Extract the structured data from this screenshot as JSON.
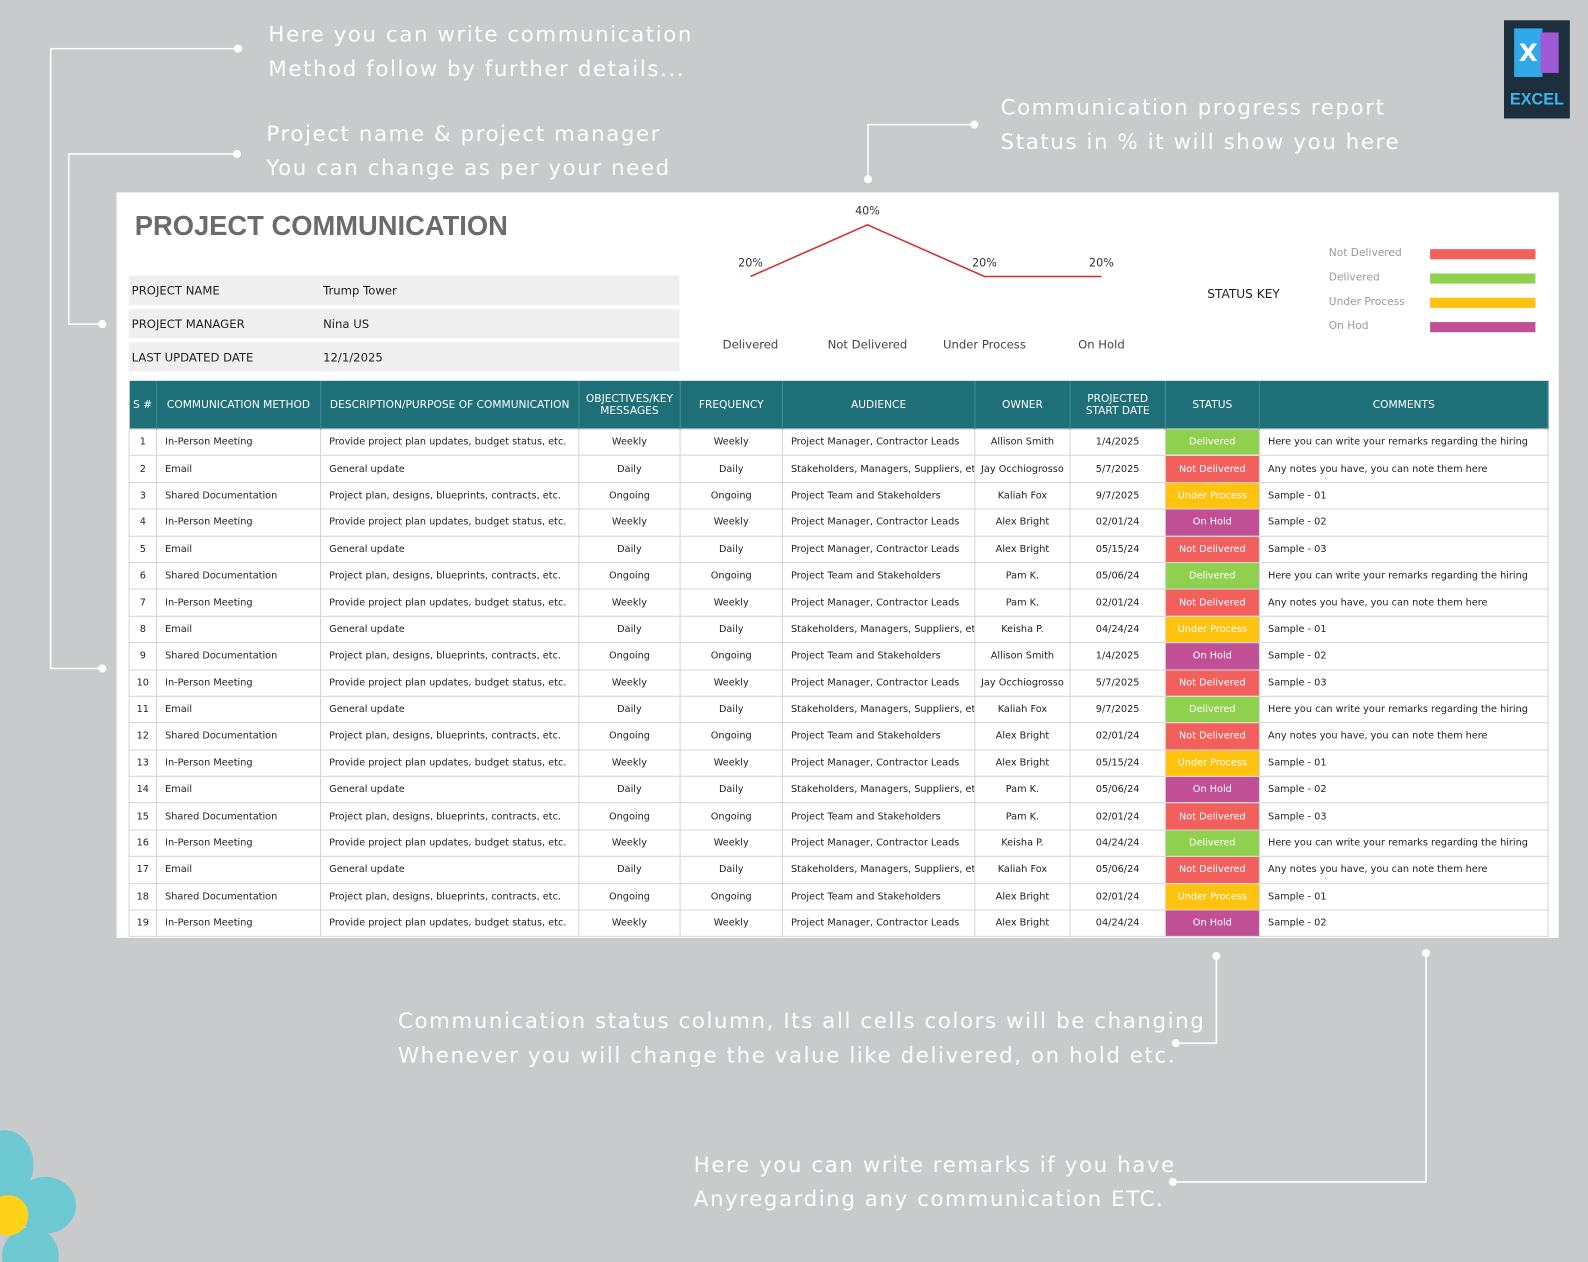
{
  "annotations": [
    {
      "lines": [
        "Here you can write communication",
        "Method follow by further details..."
      ]
    },
    {
      "lines": [
        "Project name & project manager",
        "You can change as per your need"
      ]
    },
    {
      "lines": [
        "Communication progress report",
        "Status in % it will show you here"
      ]
    },
    {
      "lines": [
        "Communication status column, Its all cells colors will be changing",
        "Whenever you will change the value like delivered, on hold etc."
      ]
    },
    {
      "lines": [
        "Here you can write remarks if you have",
        "Anyregarding any communication ETC."
      ]
    }
  ],
  "logo": {
    "icon": "X",
    "label": "EXCEL"
  },
  "sheet": {
    "title": "PROJECT COMMUNICATION",
    "info": [
      [
        "PROJECT NAME",
        "Trump Tower"
      ],
      [
        "PROJECT MANAGER",
        "Nina US"
      ],
      [
        "LAST UPDATED DATE",
        "12/1/2025"
      ]
    ]
  },
  "chart_data": {
    "type": "line",
    "categories": [
      "Delivered",
      "Not Delivered",
      "Under Process",
      "On Hold"
    ],
    "values": [
      20,
      40,
      20,
      20
    ],
    "value_labels": [
      "20%",
      "40%",
      "20%",
      "20%"
    ],
    "color": "#d42a2a"
  },
  "status_key": {
    "title": "STATUS KEY",
    "items": [
      {
        "name": "Not Delivered",
        "color": "#f2605e"
      },
      {
        "name": "Delivered",
        "color": "#8fd14f"
      },
      {
        "name": "Under Process",
        "color": "#ffc20e"
      },
      {
        "name": "On Hod",
        "color": "#c04f95"
      }
    ]
  },
  "table": {
    "status_colors": {
      "Delivered": "#8fd14f",
      "Not Delivered": "#f2605e",
      "Under Process": "#ffc20e",
      "On Hold": "#c04f95"
    },
    "headers": [
      "S #",
      "COMMUNICATION METHOD",
      "DESCRIPTION/PURPOSE OF COMMUNICATION",
      "OBJECTIVES/KEY MESSAGES",
      "FREQUENCY",
      "AUDIENCE",
      "OWNER",
      "PROJECTED START DATE",
      "STATUS",
      "COMMENTS"
    ],
    "rows": [
      [
        1,
        "In-Person Meeting",
        "Provide project plan updates, budget status, etc.",
        "Weekly",
        "Weekly",
        "Project Manager, Contractor Leads",
        "Allison Smith",
        "1/4/2025",
        "Delivered",
        "Here you can write your remarks regarding the hiring"
      ],
      [
        2,
        "Email",
        "General update",
        "Daily",
        "Daily",
        "Stakeholders, Managers, Suppliers, etc.",
        "Jay Occhiogrosso",
        "5/7/2025",
        "Not Delivered",
        "Any notes you have, you can note them here"
      ],
      [
        3,
        "Shared Documentation",
        "Project plan, designs, blueprints, contracts, etc.",
        "Ongoing",
        "Ongoing",
        "Project Team and Stakeholders",
        "Kaliah Fox",
        "9/7/2025",
        "Under Process",
        "Sample - 01"
      ],
      [
        4,
        "In-Person Meeting",
        "Provide project plan updates, budget status, etc.",
        "Weekly",
        "Weekly",
        "Project Manager, Contractor Leads",
        "Alex Bright",
        "02/01/24",
        "On Hold",
        "Sample - 02"
      ],
      [
        5,
        "Email",
        "General update",
        "Daily",
        "Daily",
        "Project Manager, Contractor Leads",
        "Alex Bright",
        "05/15/24",
        "Not Delivered",
        "Sample - 03"
      ],
      [
        6,
        "Shared Documentation",
        "Project plan, designs, blueprints, contracts, etc.",
        "Ongoing",
        "Ongoing",
        "Project Team and Stakeholders",
        "Pam K.",
        "05/06/24",
        "Delivered",
        "Here you can write your remarks regarding the hiring"
      ],
      [
        7,
        "In-Person Meeting",
        "Provide project plan updates, budget status, etc.",
        "Weekly",
        "Weekly",
        "Project Manager, Contractor Leads",
        "Pam K.",
        "02/01/24",
        "Not Delivered",
        "Any notes you have, you can note them here"
      ],
      [
        8,
        "Email",
        "General update",
        "Daily",
        "Daily",
        "Stakeholders, Managers, Suppliers, etc.",
        "Keisha P.",
        "04/24/24",
        "Under Process",
        "Sample - 01"
      ],
      [
        9,
        "Shared Documentation",
        "Project plan, designs, blueprints, contracts, etc.",
        "Ongoing",
        "Ongoing",
        "Project Team and Stakeholders",
        "Allison Smith",
        "1/4/2025",
        "On Hold",
        "Sample - 02"
      ],
      [
        10,
        "In-Person Meeting",
        "Provide project plan updates, budget status, etc.",
        "Weekly",
        "Weekly",
        "Project Manager, Contractor Leads",
        "Jay Occhiogrosso",
        "5/7/2025",
        "Not Delivered",
        "Sample - 03"
      ],
      [
        11,
        "Email",
        "General update",
        "Daily",
        "Daily",
        "Stakeholders, Managers, Suppliers, etc.",
        "Kaliah Fox",
        "9/7/2025",
        "Delivered",
        "Here you can write your remarks regarding the hiring"
      ],
      [
        12,
        "Shared Documentation",
        "Project plan, designs, blueprints, contracts, etc.",
        "Ongoing",
        "Ongoing",
        "Project Team and Stakeholders",
        "Alex Bright",
        "02/01/24",
        "Not Delivered",
        "Any notes you have, you can note them here"
      ],
      [
        13,
        "In-Person Meeting",
        "Provide project plan updates, budget status, etc.",
        "Weekly",
        "Weekly",
        "Project Manager, Contractor Leads",
        "Alex Bright",
        "05/15/24",
        "Under Process",
        "Sample - 01"
      ],
      [
        14,
        "Email",
        "General update",
        "Daily",
        "Daily",
        "Stakeholders, Managers, Suppliers, etc.",
        "Pam K.",
        "05/06/24",
        "On Hold",
        "Sample - 02"
      ],
      [
        15,
        "Shared Documentation",
        "Project plan, designs, blueprints, contracts, etc.",
        "Ongoing",
        "Ongoing",
        "Project Team and Stakeholders",
        "Pam K.",
        "02/01/24",
        "Not Delivered",
        "Sample - 03"
      ],
      [
        16,
        "In-Person Meeting",
        "Provide project plan updates, budget status, etc.",
        "Weekly",
        "Weekly",
        "Project Manager, Contractor Leads",
        "Keisha P.",
        "04/24/24",
        "Delivered",
        "Here you can write your remarks regarding the hiring"
      ],
      [
        17,
        "Email",
        "General update",
        "Daily",
        "Daily",
        "Stakeholders, Managers, Suppliers, etc.",
        "Kaliah Fox",
        "05/06/24",
        "Not Delivered",
        "Any notes you have, you can note them here"
      ],
      [
        18,
        "Shared Documentation",
        "Project plan, designs, blueprints, contracts, etc.",
        "Ongoing",
        "Ongoing",
        "Project Team and Stakeholders",
        "Alex Bright",
        "02/01/24",
        "Under Process",
        "Sample - 01"
      ],
      [
        19,
        "In-Person Meeting",
        "Provide project plan updates, budget status, etc.",
        "Weekly",
        "Weekly",
        "Project Manager, Contractor Leads",
        "Alex Bright",
        "04/24/24",
        "On Hold",
        "Sample - 02"
      ]
    ]
  }
}
